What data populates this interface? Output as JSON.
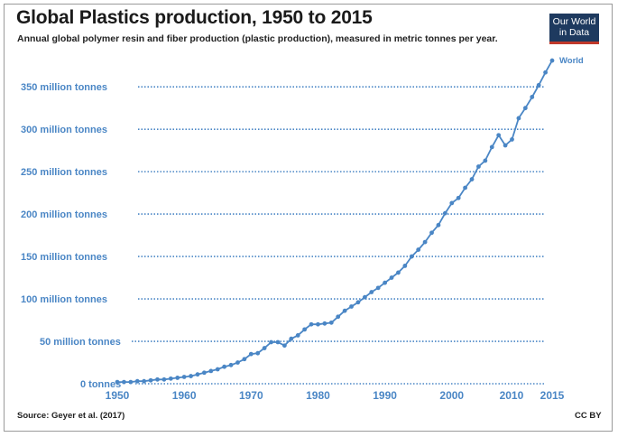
{
  "header": {
    "title": "Global Plastics production, 1950 to 2015",
    "subtitle": "Annual global polymer resin and fiber production (plastic production), measured in metric tonnes per year."
  },
  "logo": {
    "line1": "Our World",
    "line2": "in Data"
  },
  "footer": {
    "source": "Source: Geyer et al. (2017)",
    "license": "CC BY"
  },
  "colors": {
    "series": "#4a86c5",
    "logo_bg": "#1e3a5f",
    "logo_accent": "#c0392b"
  },
  "chart_data": {
    "type": "line",
    "title": "Global Plastics production, 1950 to 2015",
    "subtitle": "Annual global polymer resin and fiber production (plastic production), measured in metric tonnes per year.",
    "ylim": [
      0,
      380
    ],
    "xlim": [
      1950,
      2015
    ],
    "grid": "horizontal dotted",
    "y_ticks": [
      {
        "value": 0,
        "label": "0   tonnes"
      },
      {
        "value": 50,
        "label": "50   million   tonnes"
      },
      {
        "value": 100,
        "label": "100   million   tonnes"
      },
      {
        "value": 150,
        "label": "150   million   tonnes"
      },
      {
        "value": 200,
        "label": "200   million   tonnes"
      },
      {
        "value": 250,
        "label": "250   million   tonnes"
      },
      {
        "value": 300,
        "label": "300   million   tonnes"
      },
      {
        "value": 350,
        "label": "350   million   tonnes"
      }
    ],
    "x_ticks": [
      1950,
      1960,
      1970,
      1980,
      1990,
      2000,
      2010,
      2015
    ],
    "series": [
      {
        "name": "World",
        "x": [
          1950,
          1951,
          1952,
          1953,
          1954,
          1955,
          1956,
          1957,
          1958,
          1959,
          1960,
          1961,
          1962,
          1963,
          1964,
          1965,
          1966,
          1967,
          1968,
          1969,
          1970,
          1971,
          1972,
          1973,
          1974,
          1975,
          1976,
          1977,
          1978,
          1979,
          1980,
          1981,
          1982,
          1983,
          1984,
          1985,
          1986,
          1987,
          1988,
          1989,
          1990,
          1991,
          1992,
          1993,
          1994,
          1995,
          1996,
          1997,
          1998,
          1999,
          2000,
          2001,
          2002,
          2003,
          2004,
          2005,
          2006,
          2007,
          2008,
          2009,
          2010,
          2011,
          2012,
          2013,
          2014,
          2015
        ],
        "values": [
          2,
          2,
          2,
          3,
          3,
          4,
          5,
          5,
          6,
          7,
          8,
          9,
          11,
          13,
          15,
          17,
          20,
          22,
          25,
          29,
          35,
          36,
          42,
          49,
          49,
          45,
          53,
          57,
          64,
          70,
          70,
          71,
          72,
          79,
          86,
          91,
          96,
          102,
          108,
          113,
          119,
          125,
          131,
          139,
          150,
          158,
          167,
          178,
          187,
          201,
          213,
          219,
          231,
          241,
          256,
          263,
          279,
          293,
          281,
          288,
          313,
          325,
          338,
          352,
          367,
          381
        ]
      }
    ]
  }
}
